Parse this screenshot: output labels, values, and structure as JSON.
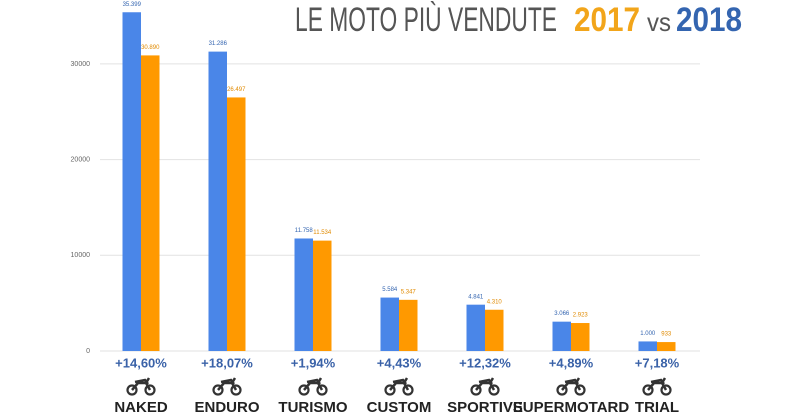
{
  "chart_data": {
    "type": "bar",
    "title": "LE MOTO PIÙ VENDUTE",
    "title_vs": "vs",
    "categories": [
      "NAKED",
      "ENDURO",
      "TURISMO",
      "CUSTOM",
      "SPORTIVE",
      "SUPERMOTARD",
      "TRIAL"
    ],
    "series": [
      {
        "name": "2018",
        "color": "#4a86e8",
        "values": [
          35399,
          31286,
          11758,
          5584,
          4841,
          3066,
          1000
        ],
        "value_labels": [
          "35.399",
          "31.286",
          "11.758",
          "5.584",
          "4.841",
          "3.066",
          "1.000"
        ]
      },
      {
        "name": "2017",
        "color": "#ff9900",
        "values": [
          30890,
          26497,
          11534,
          5347,
          4310,
          2923,
          933
        ],
        "value_labels": [
          "30.890",
          "26.497",
          "11.534",
          "5.347",
          "4.310",
          "2.923",
          "933"
        ]
      }
    ],
    "changes": [
      "+14,60%",
      "+18,07%",
      "+1,94%",
      "+4,43%",
      "+12,32%",
      "+4,89%",
      "+7,18%"
    ],
    "ylim": [
      0,
      36000
    ],
    "yticks": [
      0,
      10000,
      20000,
      30000
    ],
    "grid": true
  }
}
